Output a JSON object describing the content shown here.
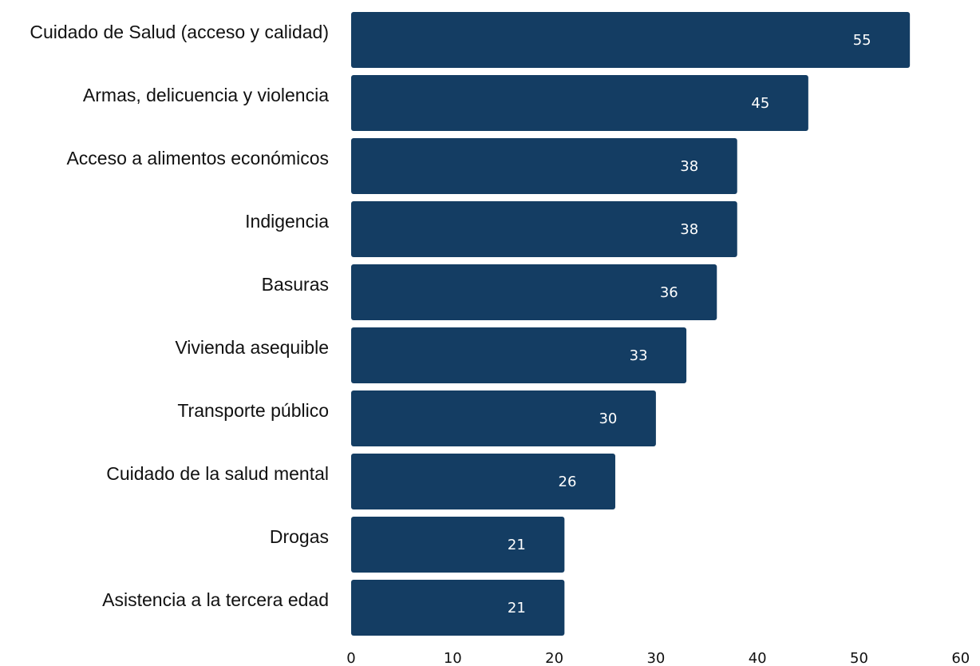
{
  "chart_data": {
    "type": "bar",
    "orientation": "horizontal",
    "categories": [
      "Cuidado de Salud (acceso y calidad)",
      "Armas, delicuencia y violencia",
      "Acceso a alimentos económicos",
      "Indigencia",
      "Basuras",
      "Vivienda asequible",
      "Transporte público",
      "Cuidado de la salud mental",
      "Drogas",
      "Asistencia a la tercera edad"
    ],
    "values": [
      55,
      45,
      38,
      38,
      36,
      33,
      30,
      26,
      21,
      21
    ],
    "data_labels": [
      "55",
      "45",
      "38",
      "38",
      "36",
      "33",
      "30",
      "26",
      "21",
      "21"
    ],
    "xlim": [
      0,
      60
    ],
    "xticks": [
      "0",
      "10",
      "20",
      "30",
      "40",
      "50",
      "60"
    ],
    "title": "",
    "xlabel": "",
    "ylabel": "",
    "grid": false,
    "legend": "none",
    "colors": {
      "bar": "#143d63",
      "value_text": "#ffffff",
      "text": "#111111"
    }
  }
}
